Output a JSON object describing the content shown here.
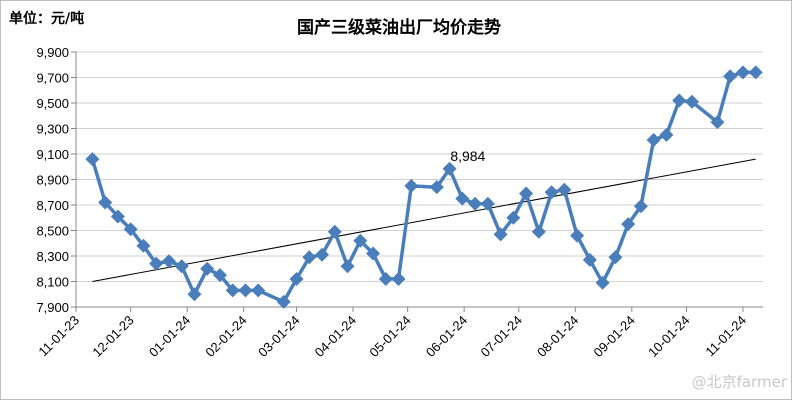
{
  "chart_data": {
    "type": "line",
    "title": "国产三级菜油出厂均价走势",
    "unit_label": "单位：元/吨",
    "ylim": [
      7900,
      9900
    ],
    "y_ticks": [
      "7,900",
      "8,100",
      "8,300",
      "8,500",
      "8,700",
      "8,900",
      "9,100",
      "9,300",
      "9,500",
      "9,700",
      "9,900"
    ],
    "y_tick_values": [
      7900,
      8100,
      8300,
      8500,
      8700,
      8900,
      9100,
      9300,
      9500,
      9700,
      9900
    ],
    "x_ticks": [
      "11-01-23",
      "12-01-23",
      "01-01-24",
      "02-01-24",
      "03-01-24",
      "04-01-24",
      "05-01-24",
      "06-01-24",
      "07-01-24",
      "08-01-24",
      "09-01-24",
      "10-01-24",
      "11-01-24"
    ],
    "grid": true,
    "legend": "none",
    "series": [
      {
        "color": "#4a7ebb",
        "marker": "diamond",
        "x": [
          "11-10-23",
          "11-17-23",
          "11-24-23",
          "12-01-23",
          "12-08-23",
          "12-15-23",
          "12-22-23",
          "12-29-23",
          "01-05-24",
          "01-12-24",
          "01-19-24",
          "01-26-24",
          "02-02-24",
          "02-09-24",
          "02-23-24",
          "03-01-24",
          "03-08-24",
          "03-15-24",
          "03-22-24",
          "03-29-24",
          "04-05-24",
          "04-12-24",
          "04-19-24",
          "04-26-24",
          "05-03-24",
          "05-17-24",
          "05-24-24",
          "05-31-24",
          "06-07-24",
          "06-14-24",
          "06-21-24",
          "06-28-24",
          "07-05-24",
          "07-12-24",
          "07-19-24",
          "07-26-24",
          "08-02-24",
          "08-09-24",
          "08-16-24",
          "08-23-24",
          "08-30-24",
          "09-06-24",
          "09-13-24",
          "09-20-24",
          "09-27-24",
          "10-04-24",
          "10-18-24",
          "10-25-24",
          "11-01-24",
          "11-08-24"
        ],
        "values": [
          9060,
          8720,
          8610,
          8510,
          8380,
          8240,
          8260,
          8220,
          8000,
          8200,
          8150,
          8030,
          8030,
          8030,
          7940,
          8120,
          8290,
          8310,
          8490,
          8220,
          8420,
          8320,
          8120,
          8120,
          8850,
          8840,
          8984,
          8750,
          8710,
          8710,
          8470,
          8600,
          8790,
          8490,
          8800,
          8820,
          8460,
          8270,
          8090,
          8290,
          8550,
          8690,
          9210,
          9250,
          9520,
          9510,
          9350,
          9710,
          9740,
          9740
        ]
      }
    ],
    "trendline": {
      "color": "#000000",
      "start": {
        "x": "11-10-23",
        "y": 8100
      },
      "end": {
        "x": "11-08-24",
        "y": 9060
      }
    },
    "annotations": [
      {
        "text": "8,984",
        "x": "05-31-24",
        "y": 8984
      }
    ]
  },
  "watermark": "@北京farmer"
}
